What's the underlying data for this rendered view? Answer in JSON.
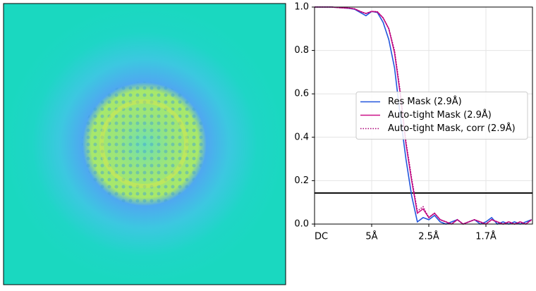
{
  "chart_data": {
    "type": "line",
    "x": [
      0,
      0.02,
      0.04,
      0.06,
      0.08,
      0.1,
      0.12,
      0.14,
      0.16,
      0.18,
      0.2,
      0.22,
      0.24,
      0.26,
      0.28,
      0.3,
      0.32,
      0.34,
      0.36,
      0.38,
      0.4,
      0.42,
      0.44,
      0.46,
      0.48,
      0.5,
      0.52,
      0.54,
      0.56,
      0.58,
      0.6,
      0.62,
      0.64,
      0.66,
      0.68,
      0.7,
      0.72,
      0.74,
      0.76
    ],
    "series": [
      {
        "name": "Res Mask (2.9Å)",
        "color": "#2255dd",
        "style": "solid",
        "values": [
          1.0,
          1.0,
          1.0,
          1.0,
          0.998,
          0.996,
          0.994,
          0.99,
          0.975,
          0.96,
          0.98,
          0.975,
          0.93,
          0.85,
          0.72,
          0.5,
          0.3,
          0.13,
          0.01,
          0.03,
          0.02,
          0.04,
          0.01,
          0.0,
          0.01,
          0.02,
          0.0,
          0.01,
          0.02,
          0.0,
          0.01,
          0.03,
          0.0,
          0.01,
          0.0,
          0.01,
          0.0,
          0.01,
          0.02
        ]
      },
      {
        "name": "Auto-tight Mask (2.9Å)",
        "color": "#cc1188",
        "style": "solid",
        "values": [
          1.0,
          1.0,
          1.0,
          1.0,
          0.998,
          0.996,
          0.995,
          0.992,
          0.98,
          0.97,
          0.98,
          0.978,
          0.95,
          0.9,
          0.79,
          0.6,
          0.37,
          0.2,
          0.05,
          0.07,
          0.03,
          0.05,
          0.02,
          0.01,
          0.0,
          0.02,
          0.0,
          0.01,
          0.02,
          0.01,
          0.0,
          0.02,
          0.01,
          0.0,
          0.01,
          0.0,
          0.01,
          0.0,
          0.02
        ]
      },
      {
        "name": "Auto-tight Mask, corr (2.9Å)",
        "color": "#aa0077",
        "style": "dotted",
        "values": [
          1.0,
          1.0,
          1.0,
          1.0,
          0.998,
          0.996,
          0.995,
          0.992,
          0.98,
          0.97,
          0.98,
          0.978,
          0.95,
          0.9,
          0.8,
          0.61,
          0.38,
          0.21,
          0.06,
          0.08,
          0.03,
          0.05,
          0.02,
          0.01,
          0.0,
          0.02,
          0.0,
          0.01,
          0.02,
          0.01,
          0.0,
          0.02,
          0.01,
          0.0,
          0.01,
          0.0,
          0.01,
          0.0,
          0.02
        ]
      }
    ],
    "threshold": 0.143,
    "xlim": [
      0,
      0.763
    ],
    "ylim": [
      0,
      1
    ],
    "xticks": [
      {
        "value": 0,
        "label": "DC"
      },
      {
        "value": 0.2,
        "label": "5Å"
      },
      {
        "value": 0.4,
        "label": "2.5Å"
      },
      {
        "value": 0.6,
        "label": "1.7Å"
      }
    ],
    "yticks": [
      {
        "value": 0,
        "label": "0.0"
      },
      0.2,
      0.4,
      0.6,
      0.8,
      {
        "value": 1,
        "label": "1.0"
      }
    ],
    "grid": true,
    "legend": "center right"
  }
}
